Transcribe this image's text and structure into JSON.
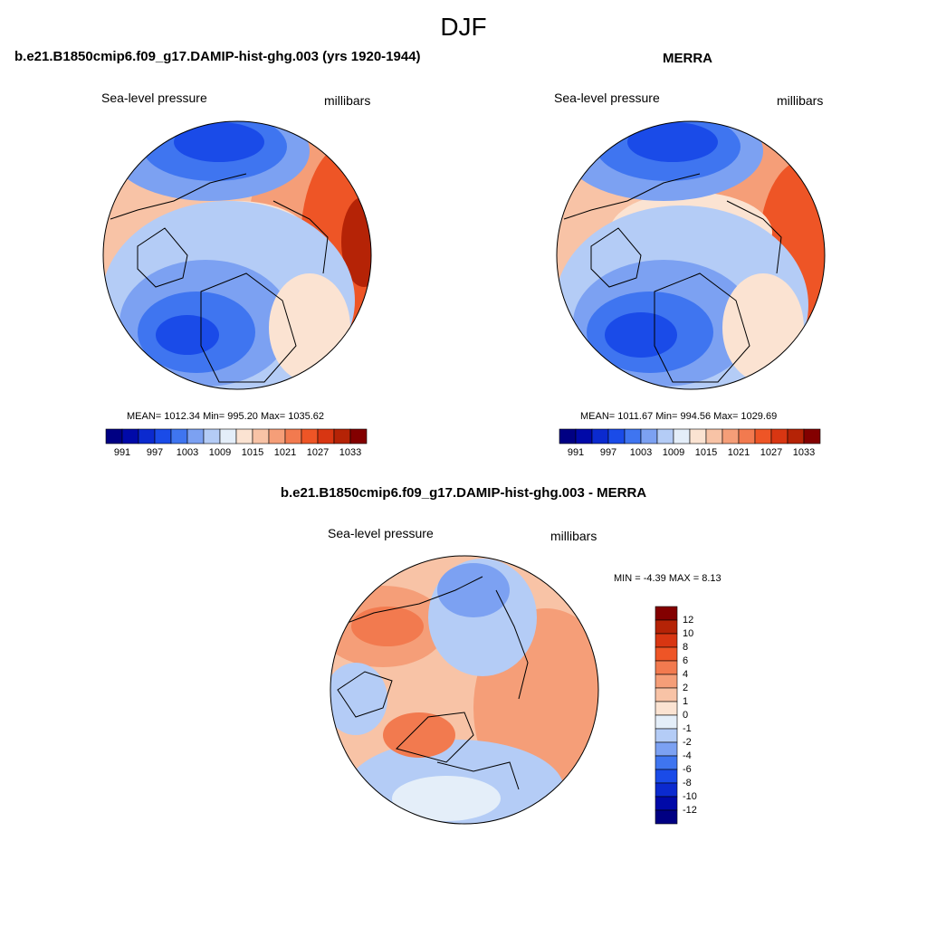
{
  "figure": {
    "season": "DJF"
  },
  "panels": [
    {
      "title": "b.e21.B1850cmip6.f09_g17.DAMIP-hist-ghg.003 (yrs 1920-1944)",
      "variable": "Sea-level pressure",
      "units": "millibars",
      "stats": "MEAN= 1012.34  Min= 995.20  Max= 1035.62",
      "colorbar": {
        "tick_labels": [
          "991",
          "997",
          "1003",
          "1009",
          "1015",
          "1021",
          "1027",
          "1033"
        ],
        "colors": [
          "#000083",
          "#0009A8",
          "#0B2ACF",
          "#1A4BE8",
          "#3F75F0",
          "#7CA1F2",
          "#B4CCF6",
          "#E4EEF9",
          "#FBE3D2",
          "#F8C3A6",
          "#F59E78",
          "#F27A4F",
          "#EE5526",
          "#D83612",
          "#B52306",
          "#830000"
        ]
      }
    },
    {
      "title": "MERRA",
      "variable": "Sea-level pressure",
      "units": "millibars",
      "stats": "MEAN= 1011.67  Min= 994.56  Max= 1029.69",
      "colorbar": {
        "tick_labels": [
          "991",
          "997",
          "1003",
          "1009",
          "1015",
          "1021",
          "1027",
          "1033"
        ],
        "colors": [
          "#000083",
          "#0009A8",
          "#0B2ACF",
          "#1A4BE8",
          "#3F75F0",
          "#7CA1F2",
          "#B4CCF6",
          "#E4EEF9",
          "#FBE3D2",
          "#F8C3A6",
          "#F59E78",
          "#F27A4F",
          "#EE5526",
          "#D83612",
          "#B52306",
          "#830000"
        ]
      }
    },
    {
      "title": "b.e21.B1850cmip6.f09_g17.DAMIP-hist-ghg.003 - MERRA",
      "variable": "Sea-level pressure",
      "units": "millibars",
      "stats": "MIN =  -4.39 MAX =   8.13",
      "colorbar": {
        "tick_labels": [
          "12",
          "10",
          "8",
          "6",
          "4",
          "2",
          "1",
          "0",
          "-1",
          "-2",
          "-4",
          "-6",
          "-8",
          "-10",
          "-12"
        ],
        "colors": [
          "#830000",
          "#B52306",
          "#D83612",
          "#EE5526",
          "#F27A4F",
          "#F59E78",
          "#F8C3A6",
          "#FBE3D2",
          "#E4EEF9",
          "#B4CCF6",
          "#7CA1F2",
          "#3F75F0",
          "#1A4BE8",
          "#0B2ACF",
          "#0009A8",
          "#000083"
        ]
      }
    }
  ]
}
